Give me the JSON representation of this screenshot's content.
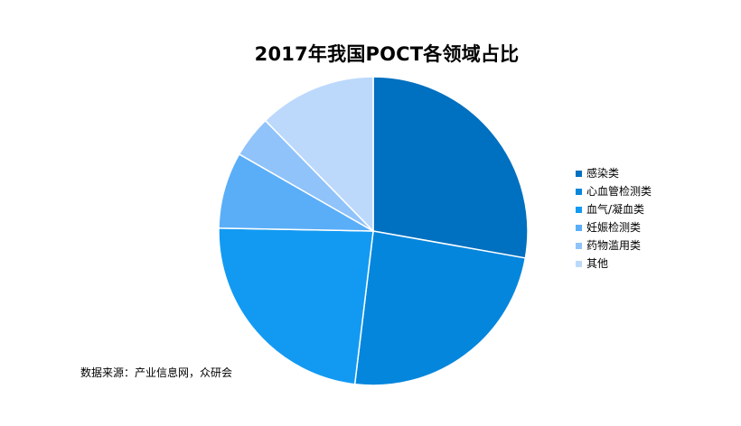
{
  "chart_data": {
    "type": "pie",
    "title": "2017年我国POCT各领域占比",
    "categories": [
      "感染类",
      "心血管检测类",
      "血气/凝血类",
      "妊娠检测类",
      "药物滥用类",
      "其他"
    ],
    "values": [
      27.8,
      24.1,
      23.4,
      8.0,
      4.4,
      12.3
    ],
    "colors": [
      "#0070c0",
      "#0586dd",
      "#129af3",
      "#5aaef7",
      "#90c3fa",
      "#bcd9fc"
    ],
    "legend_position": "right",
    "start_angle": "12 o'clock",
    "direction": "clockwise"
  },
  "source_note": "数据来源：产业信息网，众研会"
}
